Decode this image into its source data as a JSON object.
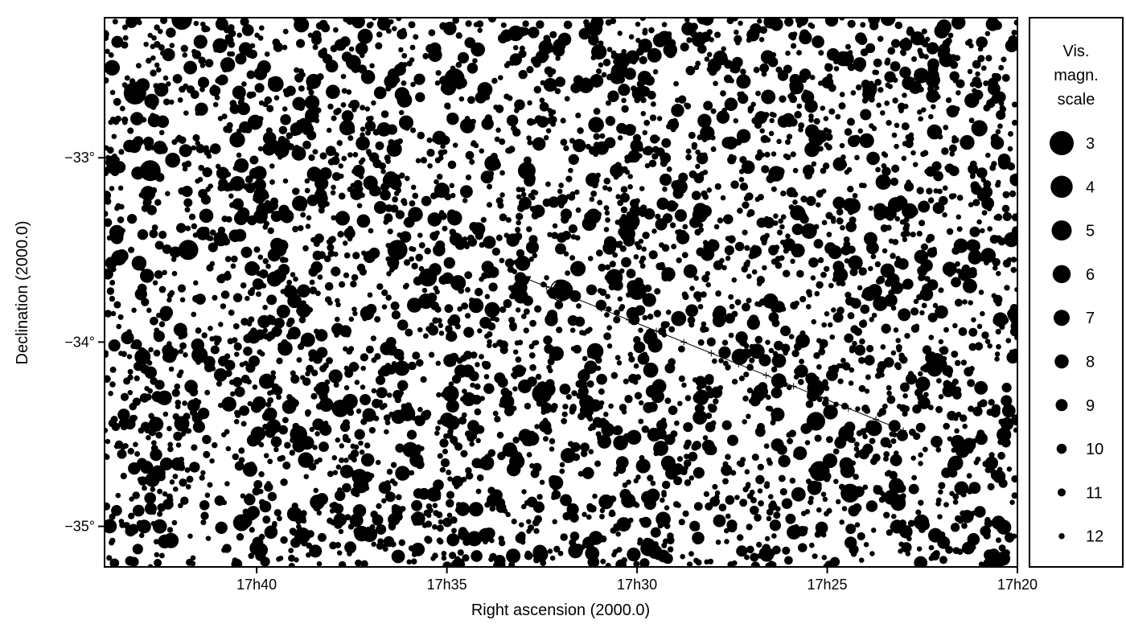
{
  "chart_data": {
    "type": "scatter",
    "subtype": "star-chart",
    "title": "",
    "xlabel": "Right ascension (2000.0)",
    "ylabel": "Declination (2000.0)",
    "x_ticks": [
      "17h40",
      "17h35",
      "17h30",
      "17h25",
      "17h20"
    ],
    "y_ticks": [
      "−33°",
      "−34°",
      "−35°"
    ],
    "ra_range_min": [
      644,
      620
    ],
    "dec_range_deg": [
      -32.24,
      -35.22
    ],
    "legend": {
      "title_lines": [
        "Vis.",
        "magn.",
        "scale"
      ],
      "position": "right",
      "magnitudes": [
        "3",
        "4",
        "5",
        "6",
        "7",
        "8",
        "9",
        "10",
        "11",
        "12"
      ]
    },
    "star_field_seed": 20240611,
    "background_star_count": 4200,
    "bright_stars": [
      {
        "ra_min": 641.97,
        "dec": -32.25,
        "mag": 4.8
      },
      {
        "ra_min": 643.2,
        "dec": -32.65,
        "mag": 3.8
      },
      {
        "ra_min": 642.8,
        "dec": -33.07,
        "mag": 4.6
      },
      {
        "ra_min": 641.8,
        "dec": -33.5,
        "mag": 5.0
      },
      {
        "ra_min": 634.8,
        "dec": -32.57,
        "mag": 4.9
      },
      {
        "ra_min": 636.3,
        "dec": -33.5,
        "mag": 5.0
      },
      {
        "ra_min": 635.5,
        "dec": -33.65,
        "mag": 6.0
      },
      {
        "ra_min": 631.95,
        "dec": -33.72,
        "mag": 4.9
      },
      {
        "ra_min": 632.5,
        "dec": -34.28,
        "mag": 5.1
      },
      {
        "ra_min": 630.0,
        "dec": -33.72,
        "mag": 5.6
      },
      {
        "ra_min": 632.9,
        "dec": -33.07,
        "mag": 6.2
      },
      {
        "ra_min": 625.3,
        "dec": -34.43,
        "mag": 5.7
      },
      {
        "ra_min": 625.2,
        "dec": -34.7,
        "mag": 5.0
      },
      {
        "ra_min": 624.4,
        "dec": -34.82,
        "mag": 5.6
      },
      {
        "ra_min": 625.3,
        "dec": -34.25,
        "mag": 6.3
      },
      {
        "ra_min": 637.8,
        "dec": -34.36,
        "mag": 6.3
      },
      {
        "ra_min": 634.9,
        "dec": -34.28,
        "mag": 6.8
      },
      {
        "ra_min": 638.9,
        "dec": -34.5,
        "mag": 6.4
      },
      {
        "ra_min": 638.8,
        "dec": -35.05,
        "mag": 6.9
      },
      {
        "ra_min": 640.4,
        "dec": -34.98,
        "mag": 6.6
      },
      {
        "ra_min": 631.1,
        "dec": -34.05,
        "mag": 6.8
      },
      {
        "ra_min": 627.3,
        "dec": -34.08,
        "mag": 6.9
      },
      {
        "ra_min": 630.6,
        "dec": -33.65,
        "mag": 6.5
      },
      {
        "ra_min": 621.0,
        "dec": -32.84,
        "mag": 6.9
      },
      {
        "ra_min": 643.0,
        "dec": -34.08,
        "mag": 7.0
      },
      {
        "ra_min": 639.5,
        "dec": -32.6,
        "mag": 7.1
      },
      {
        "ra_min": 641.5,
        "dec": -34.07,
        "mag": 6.9
      }
    ],
    "path": {
      "start": {
        "ra_min": 623.0,
        "dec": -34.48
      },
      "end": {
        "ra_min": 633.1,
        "dec": -33.64
      },
      "arrow_at": "end",
      "tick_marks": 14,
      "highlight": {
        "ra_min": 632.0,
        "dec": -33.72
      }
    }
  }
}
